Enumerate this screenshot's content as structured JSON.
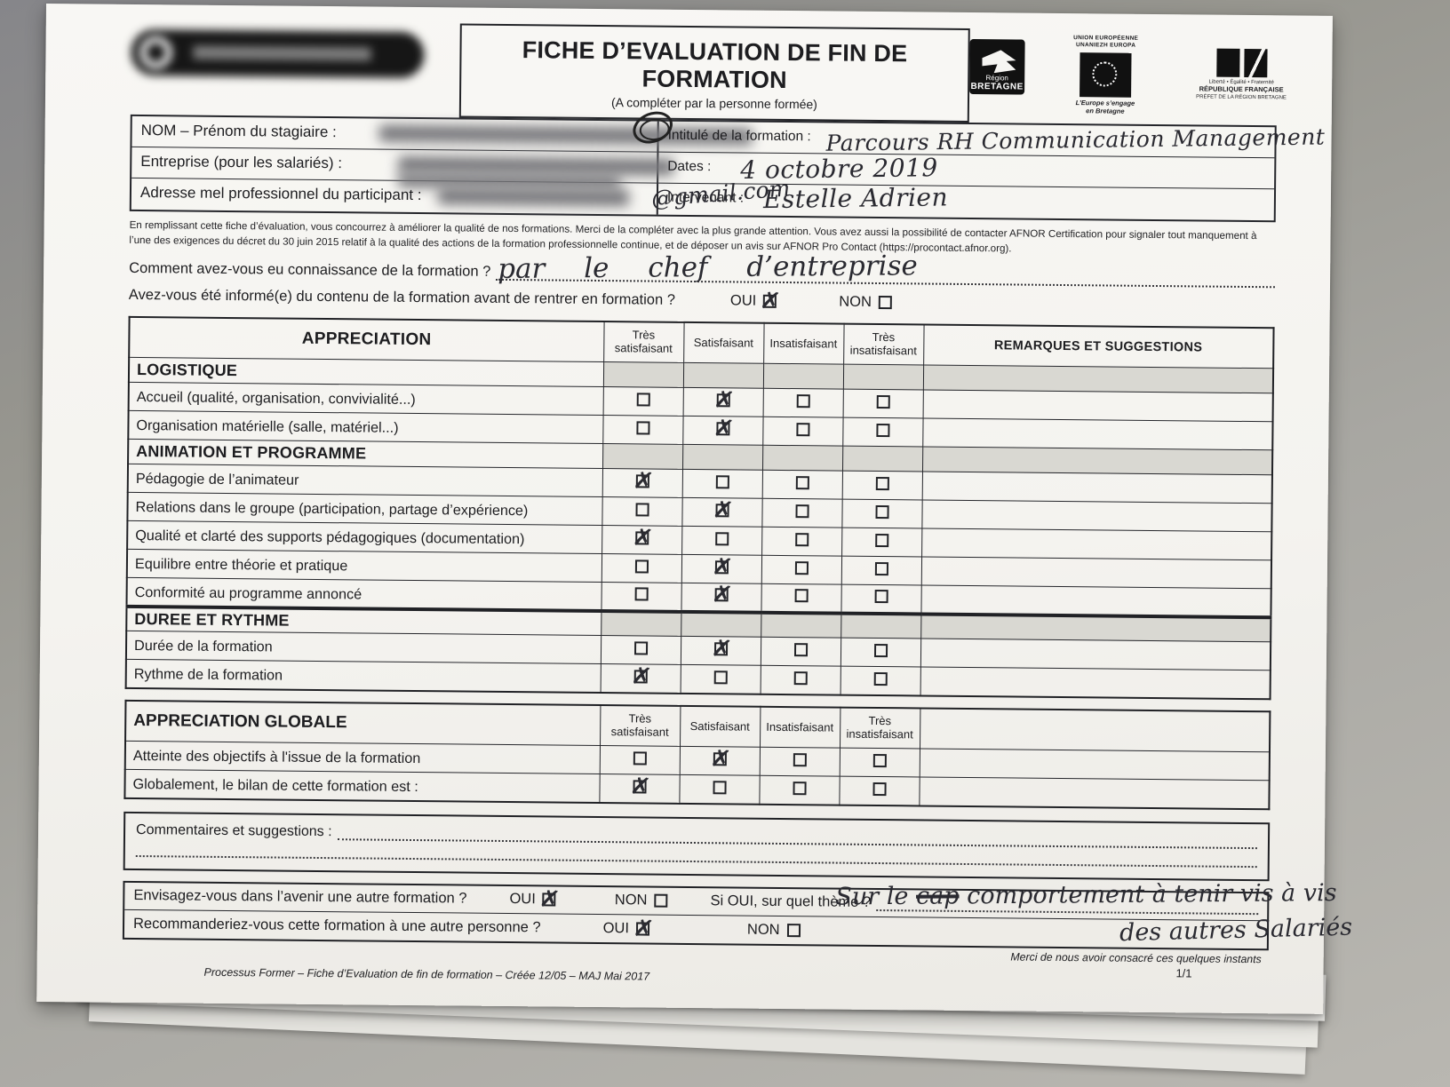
{
  "page": {
    "title": "FICHE D’EVALUATION DE FIN DE FORMATION",
    "subtitle": "(A compléter par la personne formée)",
    "footer": "Processus Former – Fiche d’Evaluation de fin de formation – Créée 12/05 – MAJ  Mai 2017",
    "page_number": "1/1"
  },
  "logos": {
    "bretagne": {
      "line1": "Région",
      "line2": "BRETAGNE"
    },
    "eu": {
      "cap_top1": "UNION EUROPÉENNE",
      "cap_top2": "UNANIEZH EUROPA",
      "cap_bot1": "L’Europe s’engage",
      "cap_bot2": "en Bretagne"
    },
    "rf": {
      "motto": "Liberté • Égalité • Fraternité",
      "line1": "RÉPUBLIQUE FRANÇAISE",
      "line2": "PRÉFET DE LA RÉGION BRETAGNE"
    }
  },
  "info": {
    "nom_label": "NOM – Prénom du stagiaire :",
    "entreprise_label": "Entreprise (pour les salariés) :",
    "adresse_label": "Adresse mel professionnel du participant  :",
    "adresse_handwriting": "@gmail.com",
    "intitule_label": "Intitulé de la formation :",
    "intitule_value": "Parcours RH Communication Management",
    "dates_label": "Dates :",
    "dates_value": "4 octobre 2019",
    "intervenant_label": "Intervenant :",
    "intervenant_value": "Estelle Adrien"
  },
  "notice": "En remplissant cette fiche d’évaluation, vous concourrez à améliorer la qualité de nos formations. Merci de la compléter avec la plus grande attention. Vous avez aussi la possibilité de contacter AFNOR Certification pour signaler tout manquement à l’une des exigences du décret du 30 juin 2015 relatif à la qualité des actions de la formation professionnelle continue, et de déposer un avis sur AFNOR Pro Contact (https://procontact.afnor.org).",
  "questions": {
    "q1_label": "Comment avez-vous eu connaissance de la formation ?",
    "q1_answer": "par le chef d’entreprise",
    "q2_label": "Avez-vous été informé(e) du contenu de la formation avant de rentrer en formation ?",
    "oui": "OUI",
    "non": "NON",
    "q2_checked": "oui"
  },
  "table": {
    "header_label": "APPRECIATION",
    "columns": [
      "Très satisfaisant",
      "Satisfaisant",
      "Insatisfaisant",
      "Très insatisfaisant"
    ],
    "remarks_header": "REMARQUES  ET SUGGESTIONS",
    "sections": [
      {
        "title": "LOGISTIQUE",
        "rows": [
          {
            "label": "Accueil (qualité, organisation, convivialité...)",
            "checked": 2
          },
          {
            "label": "Organisation matérielle (salle, matériel...)",
            "checked": 2
          }
        ]
      },
      {
        "title": "ANIMATION ET PROGRAMME",
        "rows": [
          {
            "label": "Pédagogie de l’animateur",
            "checked": 1
          },
          {
            "label": "Relations dans le groupe (participation, partage d’expérience)",
            "checked": 2
          },
          {
            "label": "Qualité et clarté des supports pédagogiques (documentation)",
            "checked": 1
          },
          {
            "label": "Equilibre entre théorie et pratique",
            "checked": 2
          },
          {
            "label": "Conformité au programme annoncé",
            "checked": 2
          }
        ]
      },
      {
        "title": "DUREE ET RYTHME",
        "rows": [
          {
            "label": "Durée de la formation",
            "checked": 2
          },
          {
            "label": "Rythme de la formation",
            "checked": 1
          }
        ]
      }
    ],
    "global_title": "APPRECIATION GLOBALE",
    "global_rows": [
      {
        "label": "Atteinte des objectifs à l'issue de la formation",
        "checked": 2
      },
      {
        "label": "Globalement, le bilan de cette  formation est :",
        "checked": 1
      }
    ]
  },
  "comments_label": "Commentaires et suggestions :",
  "bottom": {
    "q_future": "Envisagez-vous dans l’avenir une autre formation ?",
    "q_recommend": "Recommanderiez-vous cette formation à une autre personne ?",
    "oui": "OUI",
    "non": "NON",
    "future_checked": "oui",
    "recommend_checked": "oui",
    "theme_label": "Si OUI, sur quel thème ?",
    "theme_hw_part1": "Sur le",
    "theme_hw_struck": "cap",
    "theme_hw_part2": "comportement à tenir vis à vis",
    "theme_hw_line2": "des autres Salariés",
    "thanks": "Merci de nous avoir consacré ces quelques instants"
  }
}
